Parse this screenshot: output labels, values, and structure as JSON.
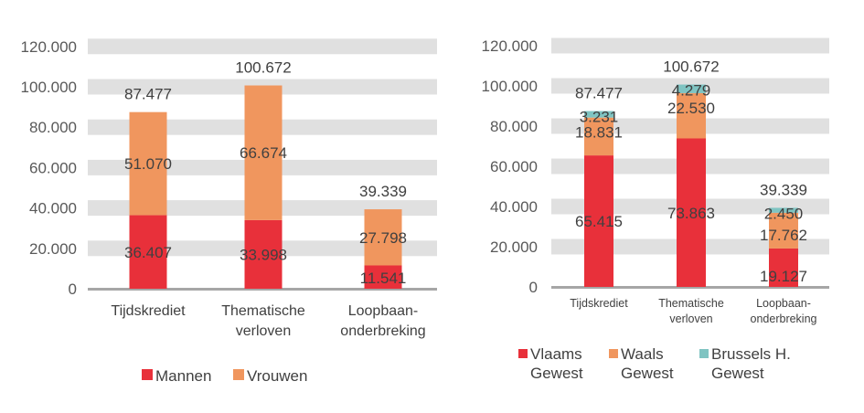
{
  "chart_data": [
    {
      "type": "bar",
      "stacked": true,
      "title": "",
      "xlabel": "",
      "ylabel": "",
      "ylim": [
        0,
        120000
      ],
      "y_ticks": [
        "0",
        "20.000",
        "40.000",
        "60.000",
        "80.000",
        "100.000",
        "120.000"
      ],
      "y_tick_values": [
        0,
        20000,
        40000,
        60000,
        80000,
        100000,
        120000
      ],
      "grid": true,
      "legend_position": "bottom",
      "categories": [
        [
          "Tijdskrediet"
        ],
        [
          "Thematische",
          "verloven"
        ],
        [
          "Loopbaan-",
          "onderbreking"
        ]
      ],
      "series": [
        {
          "name": "Mannen",
          "color": "#e8303a",
          "values": [
            36407,
            33998,
            11541
          ],
          "labels": [
            "36.407",
            "33.998",
            "11.541"
          ]
        },
        {
          "name": "Vrouwen",
          "color": "#f0965e",
          "values": [
            51070,
            66674,
            27798
          ],
          "labels": [
            "51.070",
            "66.674",
            "27.798"
          ]
        }
      ],
      "totals": [
        87477,
        100672,
        39339
      ],
      "total_labels": [
        "87.477",
        "100.672",
        "39.339"
      ],
      "legend": [
        [
          "Mannen"
        ],
        [
          "Vrouwen"
        ]
      ]
    },
    {
      "type": "bar",
      "stacked": true,
      "title": "",
      "xlabel": "",
      "ylabel": "",
      "ylim": [
        0,
        120000
      ],
      "y_ticks": [
        "0",
        "20.000",
        "40.000",
        "60.000",
        "80.000",
        "100.000",
        "120.000"
      ],
      "y_tick_values": [
        0,
        20000,
        40000,
        60000,
        80000,
        100000,
        120000
      ],
      "grid": true,
      "legend_position": "bottom",
      "categories": [
        [
          "Tijdskrediet"
        ],
        [
          "Thematische",
          "verloven"
        ],
        [
          "Loopbaan-",
          "onderbreking"
        ]
      ],
      "series": [
        {
          "name": "Vlaams Gewest",
          "color": "#e8303a",
          "values": [
            65415,
            73863,
            19127
          ],
          "labels": [
            "65.415",
            "73.863",
            "19.127"
          ]
        },
        {
          "name": "Waals Gewest",
          "color": "#f0965e",
          "values": [
            18831,
            22530,
            17762
          ],
          "labels": [
            "18.831",
            "22.530",
            "17.762"
          ]
        },
        {
          "name": "Brussels H. Gewest",
          "color": "#7fc4c2",
          "values": [
            3231,
            4279,
            2450
          ],
          "labels": [
            "3.231",
            "4.279",
            "2.450"
          ]
        }
      ],
      "totals": [
        87477,
        100672,
        39339
      ],
      "total_labels": [
        "87.477",
        "100.672",
        "39.339"
      ],
      "legend": [
        [
          "Vlaams",
          "Gewest"
        ],
        [
          "Waals",
          "Gewest"
        ],
        [
          "Brussels H.",
          "Gewest"
        ]
      ]
    }
  ],
  "colors": {
    "grid_band": "#e0e0e0",
    "axis": "#a6a6a6"
  }
}
